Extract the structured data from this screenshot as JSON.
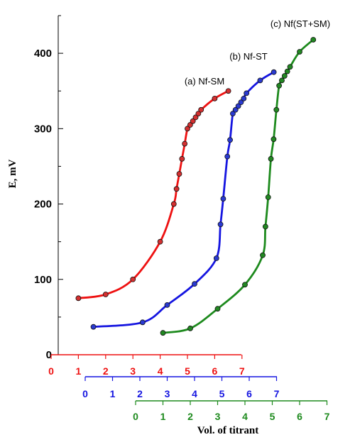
{
  "chart_data": {
    "type": "line",
    "title": "",
    "xlabel": "Vol. of titrant",
    "ylabel": "E, mV",
    "ylim": [
      0,
      450
    ],
    "yticks": [
      0,
      100,
      200,
      300,
      400
    ],
    "x_axis_ticks": [
      "0",
      "1",
      "2",
      "3",
      "4",
      "5",
      "6",
      "7"
    ],
    "series": [
      {
        "name": "(a)  Nf-SM",
        "color": "#ee1111",
        "marker_color": "#d43030",
        "xlim": [
          0,
          7
        ],
        "points": [
          [
            1.0,
            75
          ],
          [
            2.0,
            80
          ],
          [
            3.0,
            100
          ],
          [
            4.0,
            150
          ],
          [
            4.5,
            200
          ],
          [
            4.6,
            220
          ],
          [
            4.7,
            240
          ],
          [
            4.8,
            260
          ],
          [
            4.9,
            280
          ],
          [
            5.0,
            300
          ],
          [
            5.1,
            305
          ],
          [
            5.2,
            310
          ],
          [
            5.3,
            315
          ],
          [
            5.4,
            320
          ],
          [
            5.5,
            325
          ],
          [
            6.0,
            340
          ],
          [
            6.5,
            350
          ]
        ]
      },
      {
        "name": "(b)  Nf-ST",
        "color": "#1515e0",
        "marker_color": "#2a3ad0",
        "xlim": [
          0,
          7
        ],
        "points": [
          [
            0.3,
            37
          ],
          [
            2.1,
            43
          ],
          [
            3.0,
            66
          ],
          [
            4.0,
            94
          ],
          [
            4.8,
            128
          ],
          [
            4.95,
            173
          ],
          [
            5.05,
            207
          ],
          [
            5.2,
            263
          ],
          [
            5.3,
            285
          ],
          [
            5.4,
            320
          ],
          [
            5.5,
            325
          ],
          [
            5.6,
            330
          ],
          [
            5.7,
            335
          ],
          [
            5.8,
            340
          ],
          [
            5.9,
            347
          ],
          [
            6.4,
            364
          ],
          [
            6.9,
            375
          ]
        ]
      },
      {
        "name": "(c)  Nf(ST+SM)",
        "color": "#1d8a1d",
        "marker_color": "#228822",
        "xlim": [
          0,
          7
        ],
        "points": [
          [
            1.0,
            29
          ],
          [
            2.0,
            35
          ],
          [
            3.0,
            61
          ],
          [
            4.0,
            93
          ],
          [
            4.65,
            132
          ],
          [
            4.75,
            170
          ],
          [
            4.85,
            209
          ],
          [
            4.95,
            260
          ],
          [
            5.05,
            286
          ],
          [
            5.15,
            325
          ],
          [
            5.25,
            357
          ],
          [
            5.35,
            364
          ],
          [
            5.45,
            370
          ],
          [
            5.55,
            376
          ],
          [
            5.65,
            382
          ],
          [
            6.0,
            402
          ],
          [
            6.5,
            418
          ]
        ]
      }
    ]
  }
}
